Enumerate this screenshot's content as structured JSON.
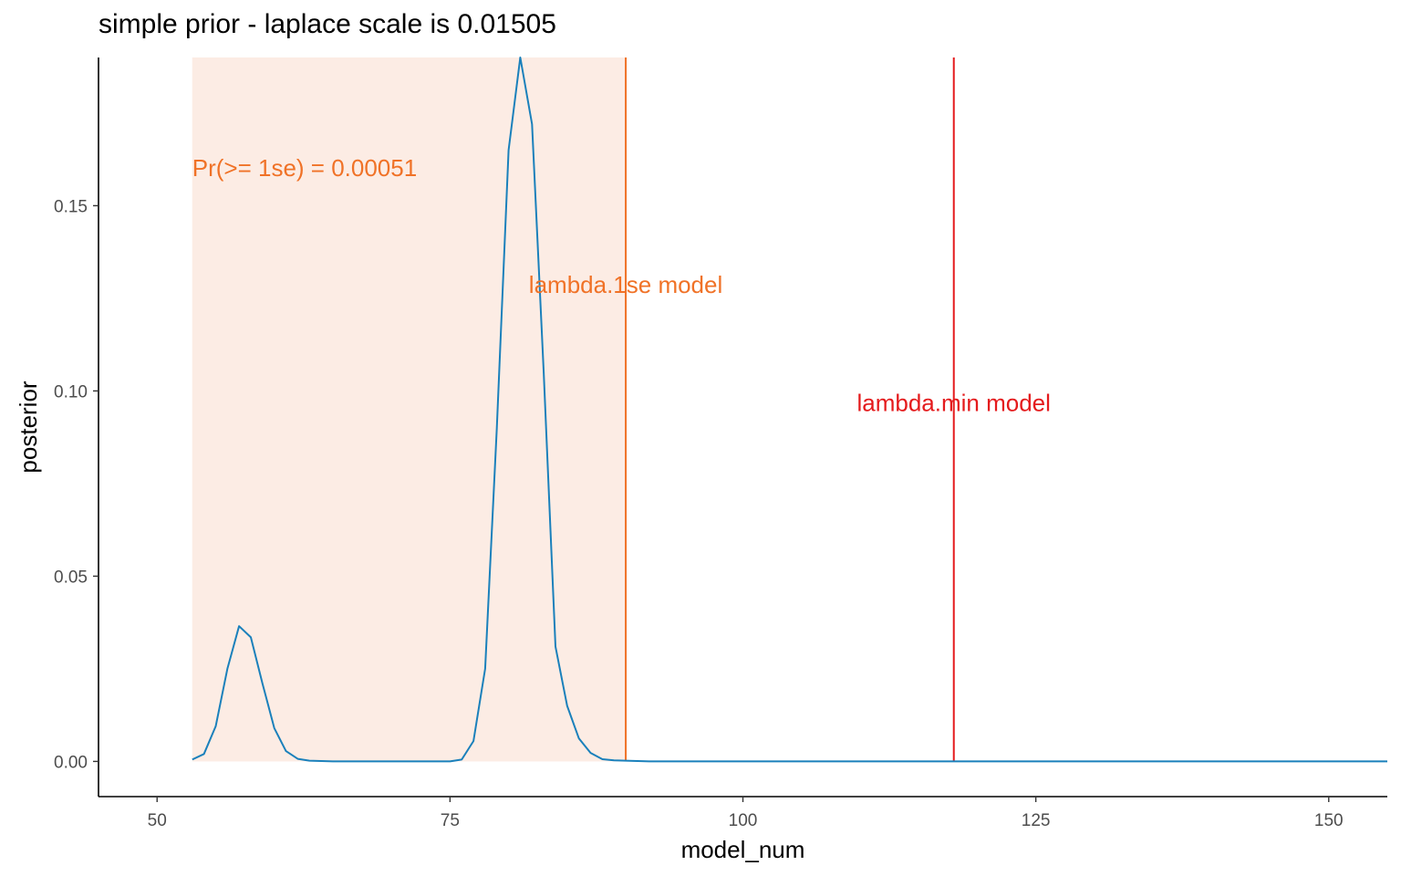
{
  "chart_data": {
    "type": "line",
    "title": "simple prior - laplace scale is 0.01505",
    "xlabel": "model_num",
    "ylabel": "posterior",
    "xlim": [
      45,
      155
    ],
    "ylim": [
      -0.0095,
      0.19
    ],
    "x_ticks": [
      50,
      75,
      100,
      125,
      150
    ],
    "y_ticks": [
      0.0,
      0.05,
      0.1,
      0.15
    ],
    "x_tick_labels": [
      "50",
      "75",
      "100",
      "125",
      "150"
    ],
    "y_tick_labels": [
      "0.00",
      "0.05",
      "0.10",
      "0.15"
    ],
    "grid": false,
    "shaded_region": {
      "x": [
        53,
        90
      ],
      "y": [
        0,
        0.19
      ],
      "color": "#fcece4"
    },
    "series": [
      {
        "color": "#1a80bb",
        "x": [
          53,
          54,
          55,
          56,
          57,
          58,
          59,
          60,
          61,
          62,
          63,
          64,
          65,
          66,
          67,
          68,
          69,
          70,
          71,
          72,
          73,
          74,
          75,
          76,
          77,
          78,
          79,
          80,
          81,
          82,
          83,
          84,
          85,
          86,
          87,
          88,
          89,
          90,
          91,
          92,
          95,
          100,
          110,
          120,
          130,
          140,
          150,
          155
        ],
        "values": [
          0.0005,
          0.002,
          0.0095,
          0.025,
          0.0365,
          0.0335,
          0.021,
          0.009,
          0.0028,
          0.0007,
          0.0002,
          0.0001,
          0,
          0,
          0,
          0,
          0,
          0,
          0,
          0,
          0,
          0,
          0,
          0.0005,
          0.0055,
          0.025,
          0.09,
          0.165,
          0.19,
          0.172,
          0.105,
          0.031,
          0.015,
          0.0062,
          0.0023,
          0.0006,
          0.0003,
          0.0002,
          0.0001,
          0,
          0,
          0,
          0,
          0,
          0,
          0,
          0,
          0
        ]
      }
    ],
    "vlines": [
      {
        "x": 90,
        "color": "#f07227",
        "label": "lambda.1se model",
        "label_y": 0.1265
      },
      {
        "x": 118,
        "color": "#e41a1c",
        "label": "lambda.min model",
        "label_y": 0.0945
      }
    ],
    "annotations": [
      {
        "text": "Pr(>= 1se) =  0.00051",
        "x": 53,
        "y": 0.158,
        "color": "#f07227",
        "anchor": "start"
      }
    ]
  }
}
